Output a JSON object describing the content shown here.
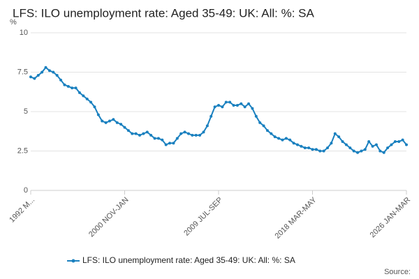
{
  "chart_data": {
    "type": "line",
    "title": "LFS: ILO unemployment rate: Aged 35-49: UK: All: %: SA",
    "y_unit": "%",
    "source": "Source:",
    "categories": [
      "1992 M...",
      null,
      null,
      null,
      null,
      null,
      null,
      null,
      null,
      null,
      null,
      null,
      null,
      null,
      null,
      null,
      null,
      null,
      null,
      null,
      null,
      null,
      null,
      null,
      null,
      "2000 NOV-JAN",
      null,
      null,
      null,
      null,
      null,
      null,
      null,
      null,
      null,
      null,
      null,
      null,
      null,
      null,
      null,
      null,
      null,
      null,
      null,
      null,
      null,
      null,
      null,
      null,
      "2009 JUL-SEP",
      null,
      null,
      null,
      null,
      null,
      null,
      null,
      null,
      null,
      null,
      null,
      null,
      null,
      null,
      null,
      null,
      null,
      null,
      null,
      null,
      null,
      null,
      null,
      null,
      "2018 MAR-MAY",
      null,
      null,
      null,
      null,
      null,
      null,
      null,
      null,
      null,
      null,
      null,
      null,
      null,
      null,
      null,
      null,
      null,
      null,
      null,
      null,
      null,
      null,
      null,
      null,
      "2026 JAN-MAR"
    ],
    "series": [
      {
        "name": "LFS: ILO unemployment rate: Aged 35-49: UK: All: %: SA",
        "color": "#1a80bf",
        "values": [
          7.2,
          7.1,
          7.3,
          7.5,
          7.8,
          7.6,
          7.5,
          7.3,
          7.0,
          6.7,
          6.6,
          6.5,
          6.5,
          6.2,
          6.0,
          5.8,
          5.6,
          5.3,
          4.8,
          4.4,
          4.3,
          4.4,
          4.5,
          4.3,
          4.2,
          4.0,
          3.8,
          3.6,
          3.6,
          3.5,
          3.6,
          3.7,
          3.5,
          3.3,
          3.3,
          3.2,
          2.9,
          3.0,
          3.0,
          3.3,
          3.6,
          3.7,
          3.6,
          3.5,
          3.5,
          3.5,
          3.7,
          4.1,
          4.7,
          5.3,
          5.4,
          5.3,
          5.6,
          5.6,
          5.4,
          5.4,
          5.5,
          5.3,
          5.5,
          5.2,
          4.7,
          4.3,
          4.1,
          3.8,
          3.6,
          3.4,
          3.3,
          3.2,
          3.3,
          3.2,
          3.0,
          2.9,
          2.8,
          2.7,
          2.7,
          2.6,
          2.6,
          2.5,
          2.5,
          2.7,
          3.0,
          3.6,
          3.4,
          3.1,
          2.9,
          2.7,
          2.5,
          2.4,
          2.5,
          2.6,
          3.1,
          2.8,
          2.9,
          2.5,
          2.4,
          2.7,
          2.9,
          3.1,
          3.1,
          3.2,
          2.9
        ]
      }
    ],
    "ylim": [
      0,
      10
    ],
    "yticks": [
      0,
      2.5,
      5,
      7.5,
      10
    ],
    "grid": true
  }
}
